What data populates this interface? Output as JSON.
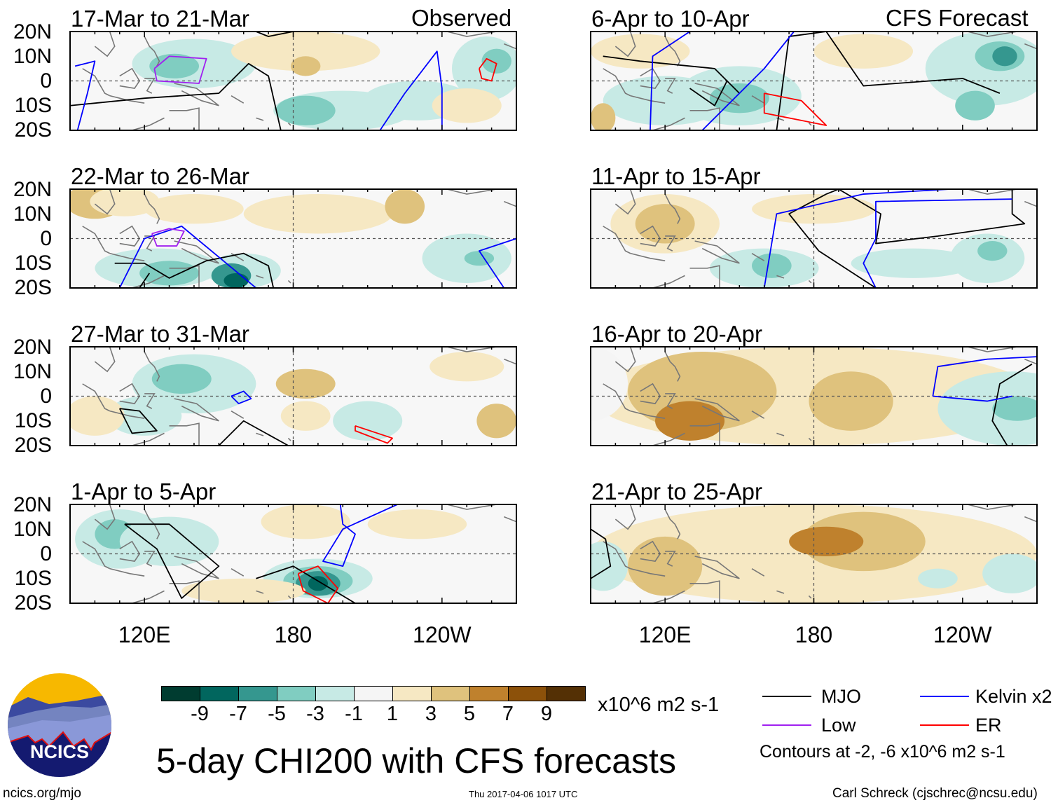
{
  "figure_title": "5-day CHI200 with CFS forecasts",
  "observed_label": "Observed",
  "forecast_label": "CFS Forecast",
  "panels": [
    {
      "title": "17-Mar to 21-Mar",
      "column": "observed"
    },
    {
      "title": "22-Mar to 26-Mar",
      "column": "observed"
    },
    {
      "title": "27-Mar to 31-Mar",
      "column": "observed"
    },
    {
      "title": "1-Apr to 5-Apr",
      "column": "observed"
    },
    {
      "title": "6-Apr to 10-Apr",
      "column": "forecast"
    },
    {
      "title": "11-Apr to 15-Apr",
      "column": "forecast"
    },
    {
      "title": "16-Apr to 20-Apr",
      "column": "forecast"
    },
    {
      "title": "21-Apr to 25-Apr",
      "column": "forecast"
    }
  ],
  "lat_labels": [
    "20N",
    "10N",
    "0",
    "10S",
    "20S"
  ],
  "lon_labels": [
    "120E",
    "180",
    "120W"
  ],
  "colorbar": {
    "labels": [
      "-9",
      "-7",
      "-5",
      "-3",
      "-1",
      "1",
      "3",
      "5",
      "7",
      "9"
    ],
    "colors": [
      "#003c30",
      "#01665e",
      "#35978f",
      "#80cdc1",
      "#c7eae5",
      "#f5f5f5",
      "#f6e8c3",
      "#dfc27d",
      "#bf812d",
      "#8c510a",
      "#543005"
    ],
    "units": "x10^6 m2 s-1"
  },
  "legend": {
    "items": [
      {
        "label": "MJO",
        "color": "#000000"
      },
      {
        "label": "Kelvin x2",
        "color": "#0000ff"
      },
      {
        "label": "Low",
        "color": "#a020f0"
      },
      {
        "label": "ER",
        "color": "#ff0000"
      }
    ],
    "contours_note": "Contours at -2, -6 x10^6 m2 s-1"
  },
  "logo": {
    "text": "NCICS"
  },
  "footer": {
    "url": "ncics.org/mjo",
    "timestamp": "Thu 2017-04-06 1017 UTC",
    "author": "Carl Schreck (cjschrec@ncsu.edu)"
  },
  "map_domain": {
    "lon_range": [
      90,
      270
    ],
    "lat_range": [
      -20,
      20
    ]
  },
  "map_fields": [
    {
      "blobs": [
        [
          140,
          7,
          25,
          10,
          4
        ],
        [
          132,
          6,
          10,
          5,
          3
        ],
        [
          165,
          10,
          6,
          3,
          3
        ],
        [
          185,
          12,
          30,
          8,
          6
        ],
        [
          185,
          6,
          6,
          4,
          7
        ],
        [
          200,
          -12,
          28,
          8,
          4
        ],
        [
          185,
          -12,
          12,
          6,
          3
        ],
        [
          258,
          5,
          14,
          13,
          4
        ],
        [
          262,
          8,
          6,
          5,
          3
        ],
        [
          230,
          -8,
          22,
          8,
          4
        ],
        [
          250,
          -10,
          14,
          7,
          6
        ]
      ],
      "mjo": [
        [
          [
            90,
            -10
          ],
          [
            120,
            -7
          ],
          [
            150,
            -5
          ],
          [
            162,
            7
          ],
          [
            170,
            2
          ],
          [
            175,
            -20
          ]
        ],
        [
          [
            165,
            20
          ],
          [
            170,
            18
          ],
          [
            180,
            20
          ]
        ]
      ],
      "kelvin": [
        [
          [
            92,
            6
          ],
          [
            100,
            8
          ],
          [
            97,
            -5
          ],
          [
            93,
            -20
          ]
        ],
        [
          [
            215,
            -20
          ],
          [
            225,
            -5
          ],
          [
            238,
            12
          ],
          [
            240,
            -3
          ],
          [
            240,
            -20
          ]
        ]
      ],
      "low": [
        [
          [
            124,
            5
          ],
          [
            130,
            10
          ],
          [
            145,
            9
          ],
          [
            142,
            -1
          ],
          [
            125,
            0
          ],
          [
            124,
            5
          ]
        ]
      ],
      "er": [
        [
          [
            255,
            5
          ],
          [
            258,
            9
          ],
          [
            262,
            7
          ],
          [
            260,
            0
          ],
          [
            256,
            1
          ],
          [
            255,
            5
          ]
        ]
      ]
    },
    {
      "blobs": [
        [
          100,
          15,
          12,
          7,
          7
        ],
        [
          112,
          15,
          14,
          6,
          6
        ],
        [
          125,
          -12,
          25,
          8,
          4
        ],
        [
          130,
          -14,
          12,
          5,
          3
        ],
        [
          160,
          -13,
          15,
          7,
          4
        ],
        [
          155,
          -15,
          8,
          5,
          2
        ],
        [
          157,
          -17,
          5,
          3,
          1
        ],
        [
          190,
          10,
          30,
          8,
          6
        ],
        [
          225,
          13,
          8,
          7,
          7
        ],
        [
          250,
          -8,
          18,
          10,
          4
        ],
        [
          255,
          -8,
          6,
          3,
          3
        ],
        [
          140,
          12,
          20,
          6,
          6
        ]
      ],
      "mjo": [
        [
          [
            108,
            -10
          ],
          [
            120,
            -10
          ],
          [
            130,
            -16
          ],
          [
            145,
            -9
          ],
          [
            160,
            -6
          ],
          [
            170,
            -11
          ],
          [
            172,
            -20
          ]
        ],
        [
          [
            118,
            -20
          ],
          [
            122,
            -14
          ]
        ]
      ],
      "kelvin": [
        [
          [
            110,
            -20
          ],
          [
            120,
            0
          ],
          [
            135,
            5
          ],
          [
            165,
            -20
          ]
        ],
        [
          [
            270,
            0
          ],
          [
            255,
            -5
          ],
          [
            265,
            -20
          ]
        ]
      ],
      "low": [
        [
          [
            123,
            2
          ],
          [
            130,
            4
          ],
          [
            136,
            3
          ],
          [
            133,
            -3
          ],
          [
            125,
            -3
          ],
          [
            123,
            2
          ]
        ]
      ],
      "er": []
    },
    {
      "blobs": [
        [
          140,
          5,
          25,
          12,
          4
        ],
        [
          135,
          7,
          12,
          6,
          3
        ],
        [
          120,
          -8,
          15,
          8,
          4
        ],
        [
          185,
          5,
          12,
          6,
          7
        ],
        [
          185,
          -8,
          10,
          6,
          6
        ],
        [
          210,
          -10,
          14,
          8,
          4
        ],
        [
          100,
          -8,
          12,
          8,
          6
        ],
        [
          262,
          -10,
          8,
          7,
          7
        ],
        [
          250,
          12,
          15,
          6,
          6
        ]
      ],
      "mjo": [
        [
          [
            110,
            -5
          ],
          [
            118,
            -6
          ],
          [
            125,
            -14
          ],
          [
            115,
            -15
          ],
          [
            110,
            -5
          ]
        ],
        [
          [
            150,
            -20
          ],
          [
            160,
            -10
          ],
          [
            178,
            -20
          ]
        ]
      ],
      "kelvin": [
        [
          [
            155,
            0
          ],
          [
            160,
            2
          ],
          [
            163,
            -1
          ],
          [
            158,
            -3
          ],
          [
            155,
            0
          ]
        ]
      ],
      "low": [],
      "er": [
        [
          [
            205,
            -12
          ],
          [
            220,
            -17
          ],
          [
            218,
            -19
          ],
          [
            205,
            -14
          ],
          [
            205,
            -12
          ]
        ]
      ]
    },
    {
      "blobs": [
        [
          110,
          6,
          18,
          12,
          4
        ],
        [
          108,
          8,
          8,
          6,
          3
        ],
        [
          130,
          5,
          20,
          10,
          4
        ],
        [
          190,
          -10,
          22,
          8,
          4
        ],
        [
          190,
          -11,
          14,
          6,
          3
        ],
        [
          190,
          -12,
          9,
          5,
          2
        ],
        [
          190,
          -12,
          4,
          3,
          1
        ],
        [
          185,
          13,
          18,
          7,
          6
        ],
        [
          230,
          12,
          20,
          6,
          6
        ],
        [
          160,
          -15,
          25,
          5,
          6
        ]
      ],
      "mjo": [
        [
          [
            112,
            12
          ],
          [
            125,
            2
          ],
          [
            135,
            -18
          ],
          [
            150,
            -5
          ],
          [
            130,
            12
          ],
          [
            112,
            12
          ]
        ],
        [
          [
            165,
            -10
          ],
          [
            180,
            -5
          ],
          [
            205,
            -20
          ]
        ]
      ],
      "kelvin": [
        [
          [
            199,
            20
          ],
          [
            200,
            12
          ],
          [
            205,
            8
          ],
          [
            200,
            -5
          ],
          [
            192,
            -3
          ],
          [
            200,
            10
          ],
          [
            222,
            20
          ]
        ]
      ],
      "low": [],
      "er": [
        [
          [
            182,
            -8
          ],
          [
            190,
            -5
          ],
          [
            198,
            -14
          ],
          [
            194,
            -20
          ],
          [
            184,
            -15
          ],
          [
            182,
            -8
          ]
        ]
      ]
    },
    {
      "blobs": [
        [
          120,
          -8,
          25,
          10,
          4
        ],
        [
          150,
          -6,
          25,
          12,
          4
        ],
        [
          150,
          -7,
          12,
          6,
          3
        ],
        [
          95,
          -15,
          5,
          6,
          7
        ],
        [
          110,
          12,
          20,
          7,
          6
        ],
        [
          250,
          5,
          25,
          15,
          4
        ],
        [
          255,
          10,
          10,
          6,
          3
        ],
        [
          257,
          10,
          5,
          4,
          2
        ],
        [
          200,
          12,
          20,
          7,
          6
        ],
        [
          245,
          -10,
          8,
          6,
          3
        ]
      ],
      "mjo": [
        [
          [
            95,
            10
          ],
          [
            110,
            8
          ],
          [
            140,
            5
          ],
          [
            150,
            -5
          ],
          [
            145,
            0
          ],
          [
            140,
            -10
          ],
          [
            130,
            -3
          ]
        ],
        [
          [
            165,
            -20
          ],
          [
            170,
            18
          ],
          [
            185,
            20
          ],
          [
            200,
            -2
          ],
          [
            240,
            1
          ],
          [
            255,
            -5
          ]
        ]
      ],
      "kelvin": [
        [
          [
            114,
            -20
          ],
          [
            115,
            10
          ],
          [
            130,
            20
          ]
        ],
        [
          [
            135,
            -20
          ],
          [
            160,
            5
          ],
          [
            172,
            20
          ]
        ]
      ],
      "low": [],
      "er": [
        [
          [
            160,
            -5
          ],
          [
            175,
            -8
          ],
          [
            185,
            -18
          ],
          [
            160,
            -13
          ],
          [
            160,
            -5
          ]
        ]
      ]
    },
    {
      "blobs": [
        [
          120,
          6,
          22,
          12,
          6
        ],
        [
          120,
          6,
          12,
          8,
          7
        ],
        [
          160,
          -12,
          22,
          8,
          4
        ],
        [
          163,
          -11,
          8,
          5,
          3
        ],
        [
          250,
          -8,
          15,
          10,
          4
        ],
        [
          252,
          -5,
          6,
          4,
          3
        ],
        [
          220,
          -10,
          25,
          6,
          4
        ],
        [
          180,
          12,
          25,
          6,
          6
        ]
      ],
      "mjo": [
        [
          [
            185,
            18
          ],
          [
            190,
            20
          ],
          [
            207,
            10
          ],
          [
            205,
            -2
          ],
          [
            230,
            1
          ],
          [
            265,
            6
          ],
          [
            260,
            10
          ],
          [
            260,
            20
          ]
        ],
        [
          [
            185,
            18
          ],
          [
            170,
            10
          ],
          [
            182,
            -5
          ],
          [
            205,
            -20
          ]
        ]
      ],
      "kelvin": [
        [
          [
            160,
            -20
          ],
          [
            165,
            10
          ],
          [
            200,
            18
          ],
          [
            235,
            20
          ]
        ],
        [
          [
            205,
            -20
          ],
          [
            200,
            -10
          ],
          [
            205,
            0
          ],
          [
            205,
            15
          ],
          [
            260,
            16
          ]
        ]
      ],
      "low": [],
      "er": []
    },
    {
      "blobs": [
        [
          180,
          0,
          90,
          20,
          6
        ],
        [
          135,
          2,
          30,
          16,
          7
        ],
        [
          130,
          -10,
          14,
          8,
          8
        ],
        [
          195,
          -2,
          17,
          12,
          7
        ],
        [
          260,
          -5,
          30,
          15,
          4
        ],
        [
          262,
          -5,
          10,
          5,
          3
        ],
        [
          90,
          5,
          15,
          15,
          5
        ]
      ],
      "mjo": [
        [
          [
            268,
            13
          ],
          [
            255,
            5
          ],
          [
            252,
            -10
          ],
          [
            258,
            -20
          ]
        ]
      ],
      "kelvin": [
        [
          [
            228,
            0
          ],
          [
            230,
            12
          ],
          [
            250,
            15
          ],
          [
            270,
            16
          ]
        ],
        [
          [
            228,
            0
          ],
          [
            250,
            -2
          ],
          [
            260,
            0
          ]
        ]
      ],
      "low": [],
      "er": []
    },
    {
      "blobs": [
        [
          180,
          0,
          90,
          20,
          6
        ],
        [
          120,
          -5,
          15,
          12,
          7
        ],
        [
          200,
          5,
          25,
          12,
          7
        ],
        [
          185,
          5,
          15,
          6,
          8
        ],
        [
          95,
          -5,
          10,
          10,
          4
        ],
        [
          260,
          -8,
          12,
          8,
          4
        ],
        [
          230,
          -10,
          8,
          4,
          4
        ]
      ],
      "mjo": [
        [
          [
            90,
            -10
          ],
          [
            98,
            -5
          ],
          [
            96,
            6
          ],
          [
            90,
            10
          ]
        ]
      ],
      "kelvin": [],
      "low": [],
      "er": []
    }
  ]
}
